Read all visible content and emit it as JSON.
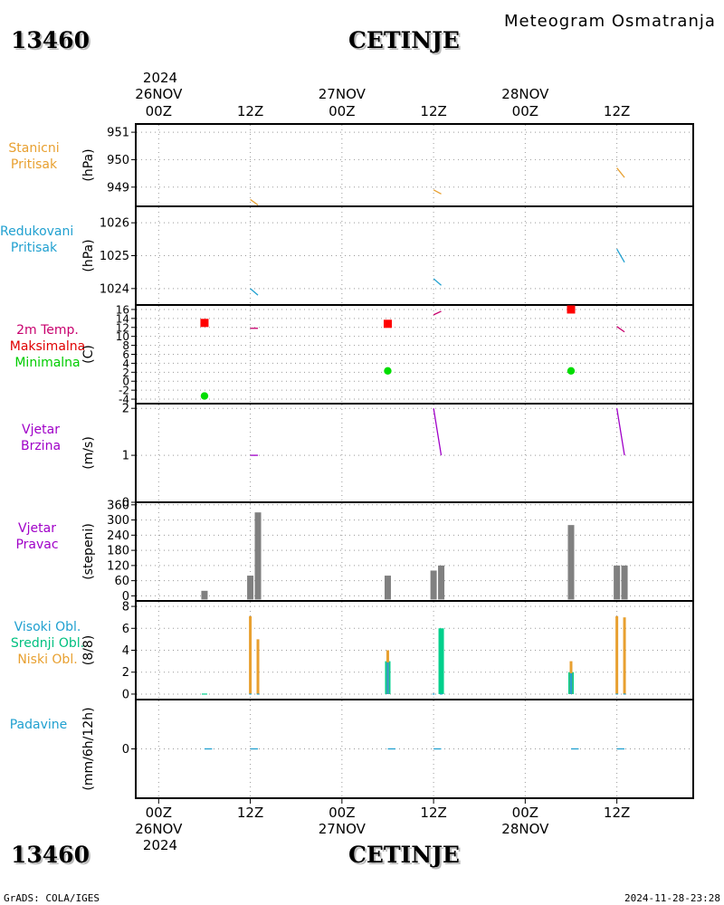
{
  "header": {
    "station_id": "13460",
    "station_name": "CETINJE",
    "meteogram_title": "Meteogram Osmatranja"
  },
  "footer": {
    "station_id": "13460",
    "station_name": "CETINJE",
    "source": "GrADS: COLA/IGES",
    "timestamp": "2024-11-28-23:28"
  },
  "time_axis": {
    "top_year": "2024",
    "bottom_year": "2024",
    "ticks": [
      {
        "h": 0,
        "label": "00Z",
        "date": "26NOV"
      },
      {
        "h": 12,
        "label": "12Z",
        "date": ""
      },
      {
        "h": 24,
        "label": "00Z",
        "date": "27NOV"
      },
      {
        "h": 36,
        "label": "12Z",
        "date": ""
      },
      {
        "h": 48,
        "label": "00Z",
        "date": "28NOV"
      },
      {
        "h": 60,
        "label": "12Z",
        "date": ""
      }
    ],
    "range_hours": [
      -3,
      70
    ]
  },
  "colors": {
    "station_pressure": "#e8a030",
    "reduced_pressure": "#20a0d0",
    "temperature": "#c8006e",
    "maximum": "#ff0000",
    "minimum": "#00dd00",
    "wind": "#a000c8",
    "direction_bars": "#808080",
    "high_clouds": "#20a0d0",
    "mid_clouds": "#00d08c",
    "low_clouds": "#e8a030",
    "precip": "#20a0d0"
  },
  "panels": {
    "station_pressure": {
      "labels": [
        "Stanicni",
        "Pritisak"
      ],
      "unit": "(hPa)"
    },
    "reduced_pressure": {
      "labels": [
        "Redukovani",
        "Pritisak"
      ],
      "unit": "(hPa)"
    },
    "temperature": {
      "labels": [
        "2m Temp.",
        "Maksimalna",
        "Minimalna"
      ],
      "unit": "(C)"
    },
    "wind_speed": {
      "labels": [
        "Vjetar",
        "Brzina"
      ],
      "unit": "(m/s)"
    },
    "wind_direction": {
      "labels": [
        "Vjetar",
        "Pravac"
      ],
      "unit": "(stepeni)"
    },
    "clouds": {
      "labels": [
        "Visoki Obl.",
        "Srednji Obl.",
        "Niski Obl."
      ],
      "unit": "(8/8)"
    },
    "precip": {
      "labels": [
        "Padavine"
      ],
      "unit": "(mm/6h/12h)"
    }
  },
  "chart_data": [
    {
      "type": "line",
      "panel": "station_pressure",
      "ylim": [
        948.3,
        951.3
      ],
      "yticks": [
        "951",
        "950",
        "949"
      ],
      "ytick_values": [
        951,
        950,
        949
      ],
      "series": [
        {
          "segments": [
            [
              [
                12,
                948.55
              ],
              [
                13,
                948.35
              ]
            ],
            [
              [
                36,
                948.9
              ],
              [
                37,
                948.75
              ]
            ],
            [
              [
                60,
                949.7
              ],
              [
                61,
                949.35
              ]
            ]
          ]
        }
      ]
    },
    {
      "type": "line",
      "panel": "reduced_pressure",
      "ylim": [
        1023.5,
        1026.5
      ],
      "yticks": [
        "1026",
        "1025",
        "1024"
      ],
      "ytick_values": [
        1026,
        1025,
        1024
      ],
      "series": [
        {
          "segments": [
            [
              [
                12,
                1024.0
              ],
              [
                13,
                1023.8
              ]
            ],
            [
              [
                36,
                1024.3
              ],
              [
                37,
                1024.1
              ]
            ],
            [
              [
                60,
                1025.2
              ],
              [
                61,
                1024.8
              ]
            ]
          ]
        }
      ]
    },
    {
      "type": "line+scatter",
      "panel": "temperature",
      "ylim": [
        -5,
        17
      ],
      "yticks": [
        "16",
        "14",
        "12",
        "10",
        "8",
        "6",
        "4",
        "2",
        "0",
        "-2",
        "-4"
      ],
      "ytick_values": [
        16,
        14,
        12,
        10,
        8,
        6,
        4,
        2,
        0,
        -2,
        -4
      ],
      "temp_segments": [
        [
          [
            12,
            11.8
          ],
          [
            13,
            11.8
          ]
        ],
        [
          [
            36,
            14.8
          ],
          [
            37,
            15.6
          ]
        ],
        [
          [
            60,
            12.2
          ],
          [
            61,
            11.0
          ]
        ]
      ],
      "maximum": [
        [
          6,
          13.0
        ],
        [
          30,
          12.8
        ],
        [
          54,
          16.0
        ]
      ],
      "minimum": [
        [
          6,
          -3.3
        ],
        [
          30,
          2.3
        ],
        [
          54,
          2.3
        ]
      ]
    },
    {
      "type": "line",
      "panel": "wind_speed",
      "ylim": [
        0,
        2.1
      ],
      "yticks": [
        "2",
        "1",
        "0"
      ],
      "ytick_values": [
        2,
        1,
        0
      ],
      "series": [
        {
          "segments": [
            [
              [
                12,
                1.0
              ],
              [
                13,
                1.0
              ]
            ],
            [
              [
                36,
                2.0
              ],
              [
                37,
                1.0
              ]
            ],
            [
              [
                60,
                2.0
              ],
              [
                61,
                1.0
              ]
            ]
          ]
        }
      ]
    },
    {
      "type": "bar",
      "panel": "wind_direction",
      "ylim": [
        -20,
        370
      ],
      "yticks": [
        "360",
        "300",
        "240",
        "180",
        "120",
        "60",
        "0"
      ],
      "ytick_values": [
        360,
        300,
        240,
        180,
        120,
        60,
        0
      ],
      "bars": [
        [
          6,
          20
        ],
        [
          12,
          80
        ],
        [
          13,
          330
        ],
        [
          30,
          80
        ],
        [
          36,
          100
        ],
        [
          37,
          120
        ],
        [
          54,
          280
        ],
        [
          60,
          120
        ],
        [
          61,
          120
        ]
      ]
    },
    {
      "type": "bar",
      "panel": "clouds",
      "ylim": [
        -0.5,
        8.5
      ],
      "yticks": [
        "8",
        "6",
        "4",
        "2",
        "0"
      ],
      "ytick_values": [
        8,
        6,
        4,
        2,
        0
      ],
      "series": [
        {
          "name": "Visoki Obl.",
          "values": [
            [
              12,
              0
            ],
            [
              13,
              0
            ],
            [
              30,
              2.9
            ],
            [
              36,
              0
            ],
            [
              37,
              0
            ],
            [
              54,
              1.9
            ],
            [
              60,
              0
            ],
            [
              61,
              0
            ]
          ]
        },
        {
          "name": "Srednji Obl.",
          "values": [
            [
              6,
              0
            ],
            [
              30,
              3.0
            ],
            [
              37,
              6.0
            ],
            [
              54,
              2.0
            ]
          ]
        },
        {
          "name": "Niski Obl.",
          "values": [
            [
              12,
              7.1
            ],
            [
              13,
              5.0
            ],
            [
              30,
              4.0
            ],
            [
              54,
              3.0
            ],
            [
              60,
              7.1
            ],
            [
              61,
              7.0
            ]
          ]
        }
      ]
    },
    {
      "type": "line",
      "panel": "precip",
      "ylim": [
        -2,
        2
      ],
      "yticks": [
        "0"
      ],
      "ytick_values": [
        0
      ],
      "series": [
        {
          "segments": [
            [
              [
                6,
                0
              ],
              [
                7,
                0
              ]
            ],
            [
              [
                12,
                0
              ],
              [
                13,
                0
              ]
            ],
            [
              [
                30,
                0
              ],
              [
                31,
                0
              ]
            ],
            [
              [
                36,
                0
              ],
              [
                37,
                0
              ]
            ],
            [
              [
                54,
                0
              ],
              [
                55,
                0
              ]
            ],
            [
              [
                60,
                0
              ],
              [
                61,
                0
              ]
            ]
          ]
        }
      ]
    }
  ]
}
